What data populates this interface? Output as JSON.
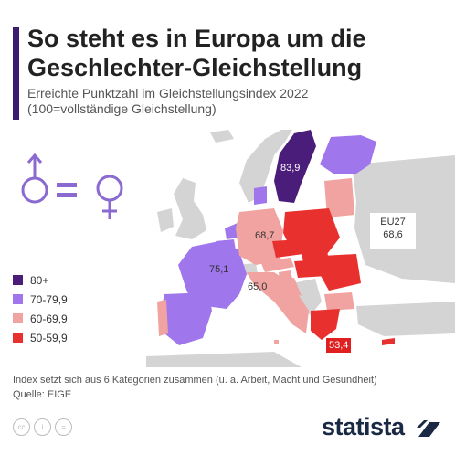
{
  "header": {
    "title_line1": "So steht es in Europa um die",
    "title_line2": "Geschlechter-Gleichstellung",
    "subtitle_line1": "Erreichte Punktzahl im Gleichstellungsindex 2022",
    "subtitle_line2": "(100=vollständige Gleichstellung)"
  },
  "legend": {
    "items": [
      {
        "label": "80+",
        "color": "#4b1d7a"
      },
      {
        "label": "70-79,9",
        "color": "#9f76ec"
      },
      {
        "label": "60-69,9",
        "color": "#f0a3a0"
      },
      {
        "label": "50-59,9",
        "color": "#e8312e"
      }
    ]
  },
  "map": {
    "labels": {
      "sweden": "83,9",
      "germany": "68,7",
      "france": "75,1",
      "italy": "65,0",
      "greece": "53,4"
    },
    "eu_label": "EU27",
    "eu_value": "68,6",
    "symbol_icon": "gender-equality-icon",
    "colors": {
      "non_eu": "#d4d4d4",
      "sea": "#ffffff"
    }
  },
  "footer": {
    "note": "Index setzt sich aus 6 Kategorien zusammen (u. a. Arbeit, Macht und Gesundheit)",
    "source": "Quelle: EIGE",
    "license_icons": [
      "cc-icon",
      "by-icon",
      "nd-icon"
    ],
    "license_glyphs": [
      "cc",
      "i",
      "="
    ],
    "brand": "statista"
  }
}
